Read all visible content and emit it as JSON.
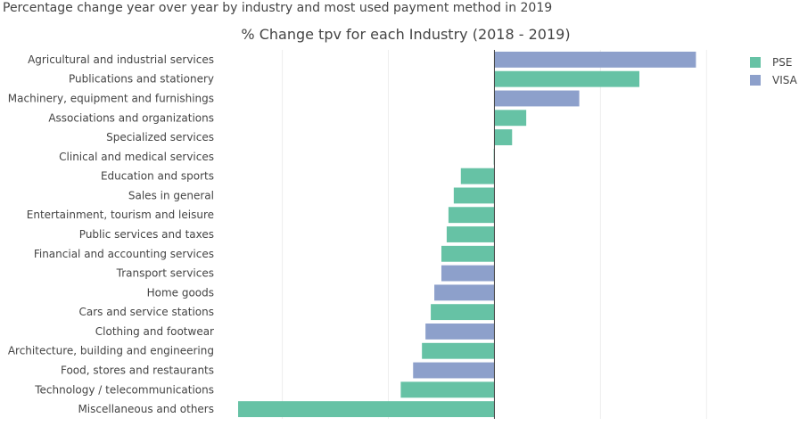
{
  "page_title": "Percentage change year over year by industry and most used payment method in 2019",
  "chart_data": {
    "type": "bar",
    "orientation": "horizontal",
    "title": "% Change tpv for each Industry (2018 - 2019)",
    "xlabel": "",
    "ylabel": "",
    "xlim": [
      -0.72,
      0.69
    ],
    "grid": true,
    "legend_position": "top-right",
    "colors": {
      "PSE": "#66c2a5",
      "VISA": "#8da0cb"
    },
    "categories": [
      "Agricultural and industrial services",
      "Publications and stationery",
      "Machinery, equipment and furnishings",
      "Associations and organizations",
      "Specialized services",
      "Clinical and medical services",
      "Education and sports",
      "Sales in general",
      "Entertainment, tourism and leisure",
      "Public services and taxes",
      "Financial and accounting services",
      "Transport services",
      "Home goods",
      "Cars and service stations",
      "Clothing and footwear",
      "Architecture, building and engineering",
      "Food, stores and restaurants",
      "Technology / telecommunications",
      "Miscellaneous and others"
    ],
    "values": [
      0.57,
      0.41,
      0.24,
      0.09,
      0.05,
      -0.002,
      -0.095,
      -0.115,
      -0.13,
      -0.135,
      -0.15,
      -0.15,
      -0.17,
      -0.18,
      -0.195,
      -0.205,
      -0.23,
      -0.265,
      -0.725
    ],
    "methods": [
      "VISA",
      "PSE",
      "VISA",
      "PSE",
      "PSE",
      "PSE",
      "PSE",
      "PSE",
      "PSE",
      "PSE",
      "PSE",
      "VISA",
      "VISA",
      "PSE",
      "VISA",
      "PSE",
      "VISA",
      "PSE",
      "PSE"
    ],
    "legend": [
      "PSE",
      "VISA"
    ]
  }
}
